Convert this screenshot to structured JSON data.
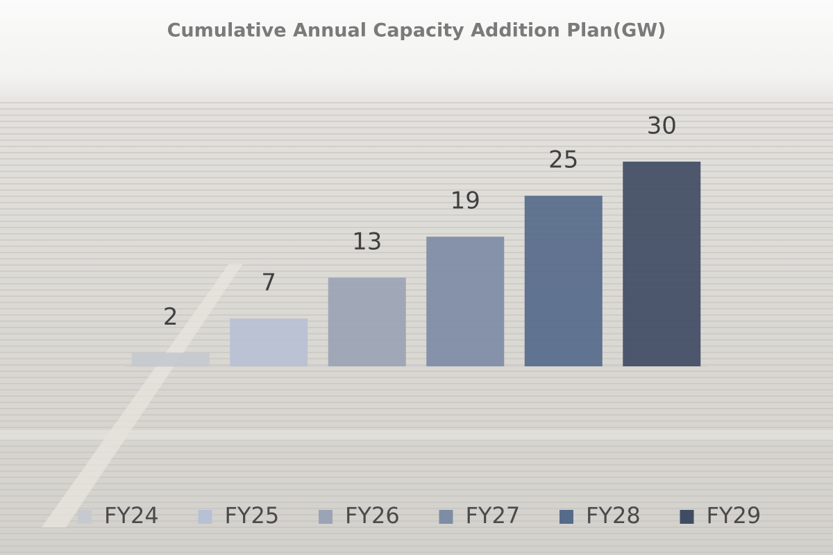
{
  "chart_data": {
    "type": "bar",
    "title": "Cumulative Annual Capacity Addition Plan(GW)",
    "categories": [
      "FY24",
      "FY25",
      "FY26",
      "FY27",
      "FY28",
      "FY29"
    ],
    "values": [
      2,
      7,
      13,
      19,
      25,
      30
    ],
    "colors": [
      "#c6c9ce",
      "#b7c0d4",
      "#9ba4b4",
      "#7e8ca6",
      "#566a8a",
      "#404c64"
    ],
    "legend": "bottom"
  }
}
